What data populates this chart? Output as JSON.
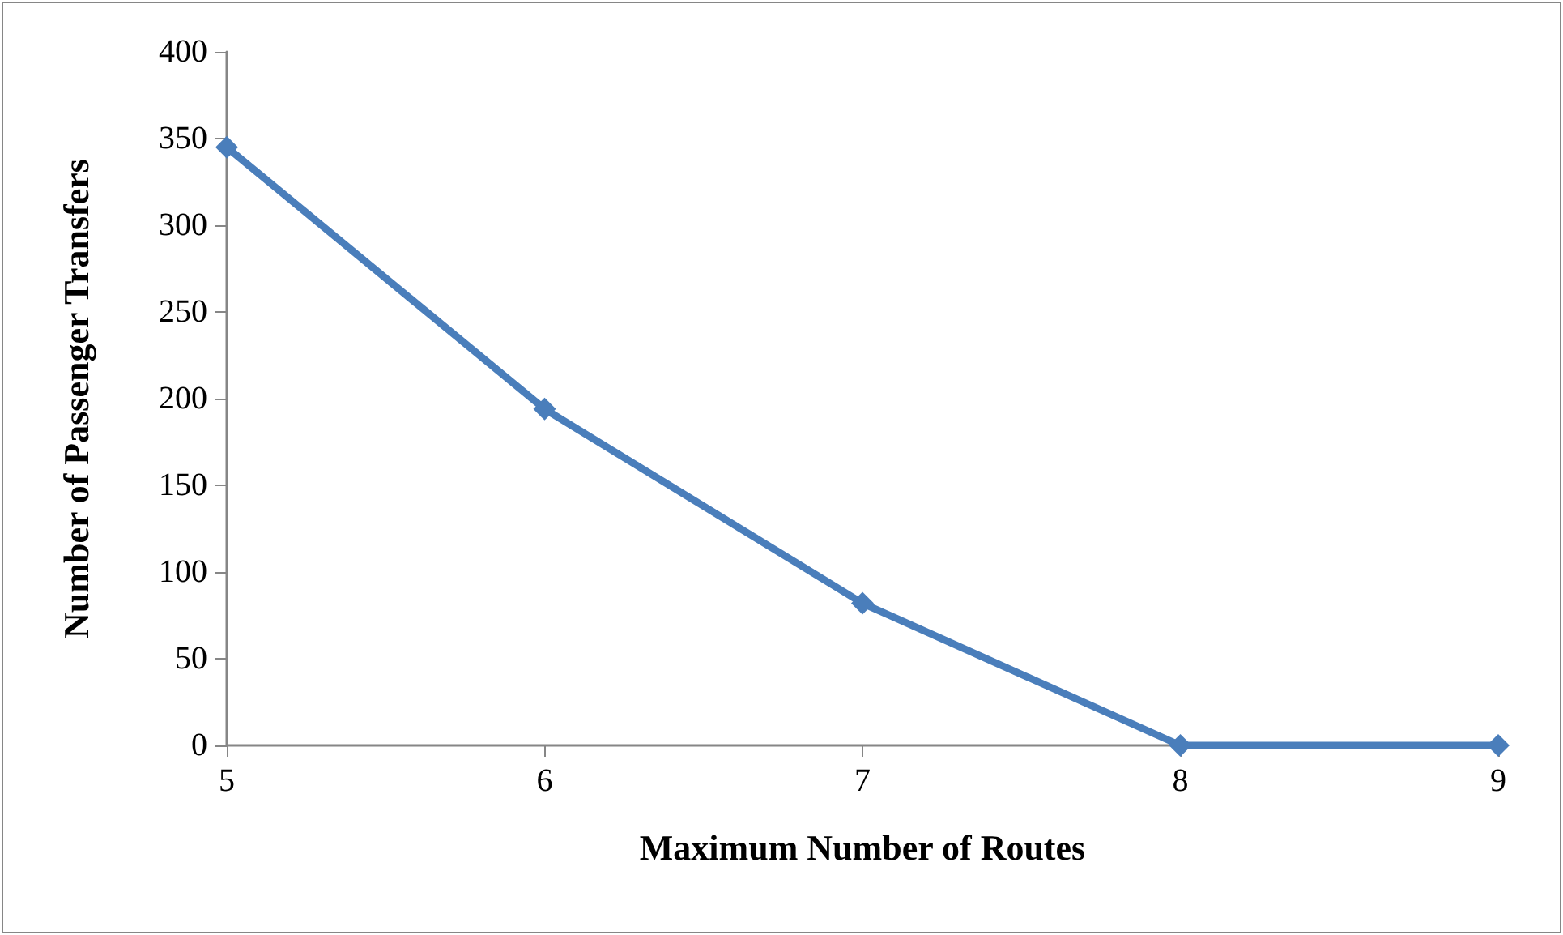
{
  "chart_data": {
    "type": "line",
    "xlabel": "Maximum Number of Routes",
    "ylabel": "Number of Passenger Transfers",
    "categories": [
      "5",
      "6",
      "7",
      "8",
      "9"
    ],
    "series": [
      {
        "color": "#4a7ebb",
        "values": [
          345,
          194,
          82,
          0,
          0
        ]
      }
    ],
    "ylim": [
      0,
      400
    ],
    "yticks": [
      0,
      50,
      100,
      150,
      200,
      250,
      300,
      350,
      400
    ],
    "grid": false,
    "marker": "diamond",
    "line_style": "solid"
  }
}
